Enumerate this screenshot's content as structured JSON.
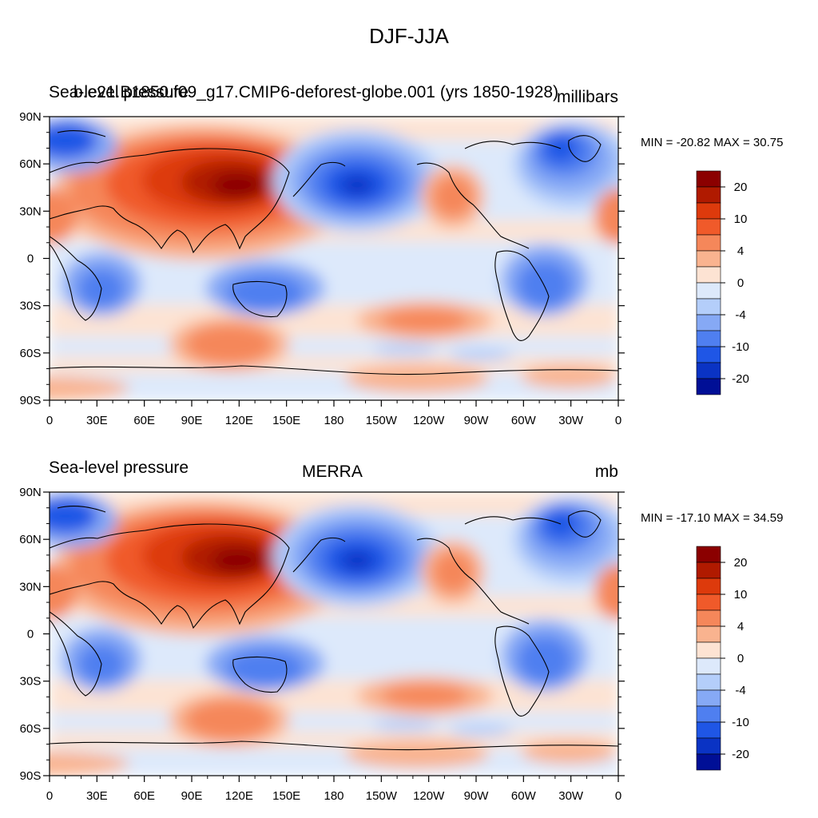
{
  "title": "DJF-JJA",
  "panels": [
    {
      "left_label": "Sea-level pressure",
      "center_label": "b.e21.B1850.f09_g17.CMIP6-deforest-globe.001 (yrs 1850-1928)",
      "right_label": "millibars",
      "minmax": "MIN = -20.82 MAX =  30.75"
    },
    {
      "left_label": "Sea-level pressure",
      "center_label": "MERRA",
      "right_label": "mb",
      "minmax": "MIN = -17.10 MAX =  34.59"
    }
  ],
  "lat_ticks": [
    "90N",
    "60N",
    "30N",
    "0",
    "30S",
    "60S",
    "90S"
  ],
  "lon_ticks": [
    "0",
    "30E",
    "60E",
    "90E",
    "120E",
    "150E",
    "180",
    "150W",
    "120W",
    "90W",
    "60W",
    "30W",
    "0"
  ],
  "colorbar": {
    "colors": [
      "#8b0000",
      "#b01a00",
      "#dd3a0c",
      "#f05a2a",
      "#f5875a",
      "#f9b38f",
      "#fde3d3",
      "#dde9fb",
      "#b4cefa",
      "#86a9f5",
      "#4f7ff0",
      "#1f56e6",
      "#0a33c4",
      "#000f96"
    ],
    "labels": [
      "20",
      "10",
      "4",
      "0",
      "-4",
      "-10",
      "-20"
    ]
  }
}
